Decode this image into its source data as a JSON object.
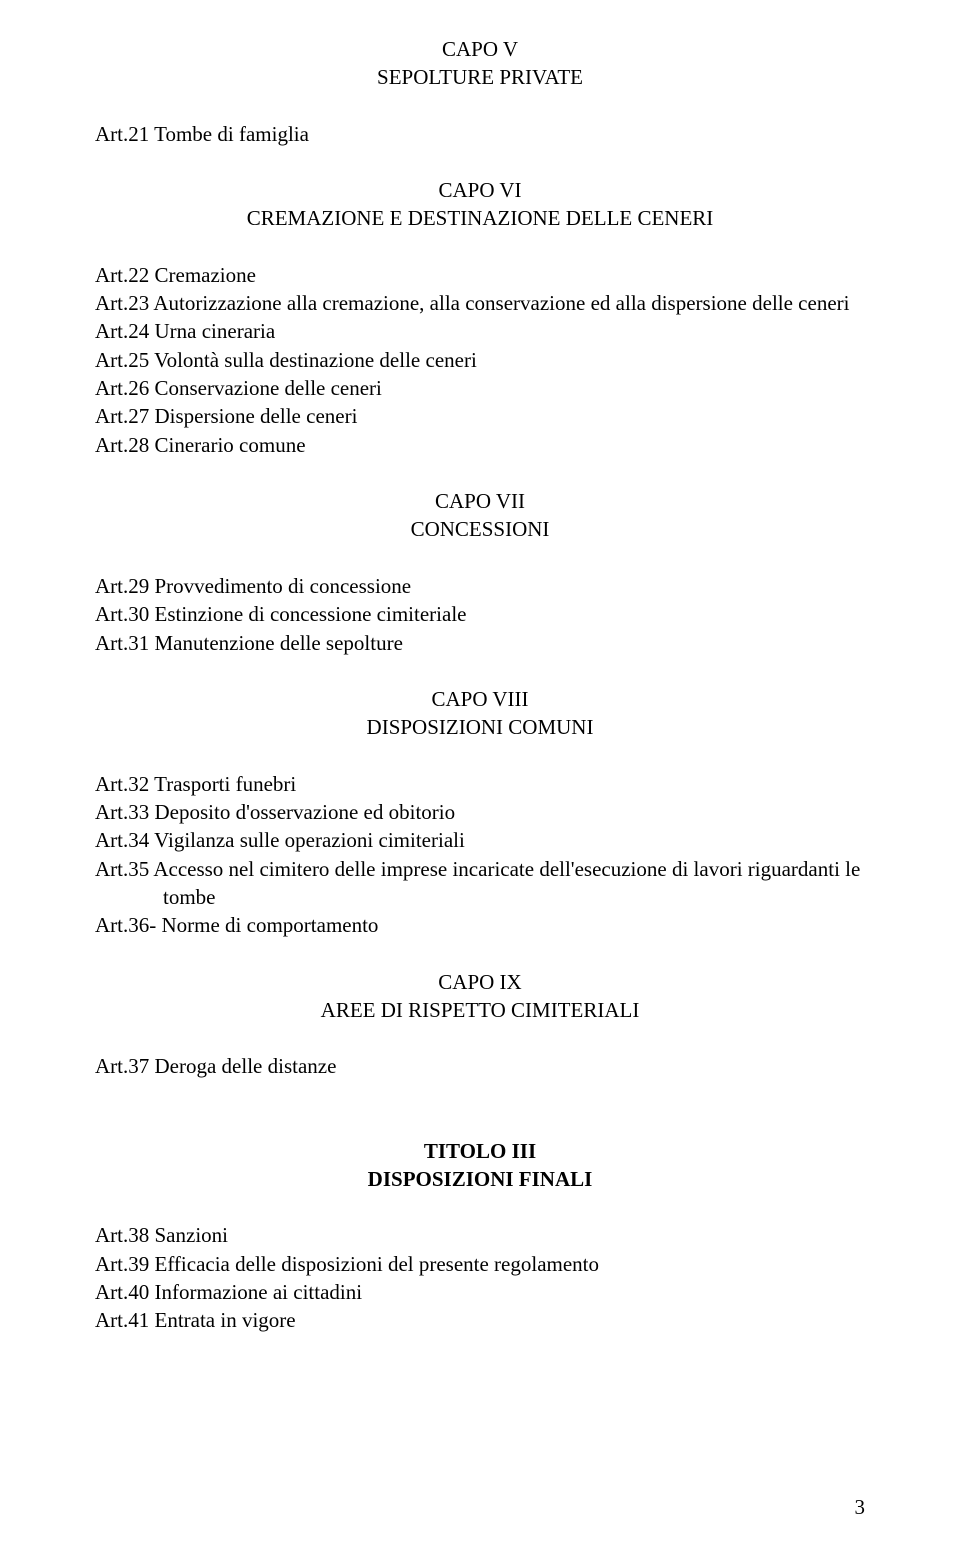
{
  "capoV": {
    "line1": "CAPO V",
    "line2": "SEPOLTURE PRIVATE"
  },
  "listV": {
    "items": [
      "Art.21  Tombe di famiglia"
    ]
  },
  "capoVI": {
    "line1": "CAPO VI",
    "line2": "CREMAZIONE E DESTINAZIONE DELLE CENERI"
  },
  "listVI": {
    "items": [
      "Art.22  Cremazione",
      "Art.23  Autorizzazione alla cremazione, alla conservazione ed alla dispersione delle ceneri",
      "Art.24  Urna cineraria",
      "Art.25  Volontà sulla destinazione delle ceneri",
      "Art.26  Conservazione delle ceneri",
      "Art.27  Dispersione delle ceneri",
      "Art.28  Cinerario comune"
    ]
  },
  "capoVII": {
    "line1": "CAPO VII",
    "line2": "CONCESSIONI"
  },
  "listVII": {
    "items": [
      "Art.29  Provvedimento di concessione",
      "Art.30  Estinzione di concessione cimiteriale",
      "Art.31  Manutenzione delle sepolture"
    ]
  },
  "capoVIII": {
    "line1": "CAPO VIII",
    "line2": "DISPOSIZIONI COMUNI"
  },
  "listVIII": {
    "item1": "Art.32  Trasporti funebri",
    "item2": "Art.33  Deposito d'osservazione ed obitorio",
    "item3": "Art.34  Vigilanza sulle operazioni cimiteriali",
    "item4a": "Art.35 Accesso nel cimitero delle imprese incaricate dell'esecuzione di lavori riguardanti le",
    "item4b": "tombe",
    "item5": "Art.36-  Norme di comportamento"
  },
  "capoIX": {
    "line1": "CAPO IX",
    "line2": "AREE DI RISPETTO CIMITERIALI"
  },
  "listIX": {
    "items": [
      "Art.37  Deroga delle distanze"
    ]
  },
  "titoloIII": {
    "line1": "TITOLO III",
    "line2": "DISPOSIZIONI FINALI"
  },
  "listIII": {
    "items": [
      "Art.38  Sanzioni",
      "Art.39  Efficacia delle disposizioni del presente regolamento",
      "Art.40  Informazione ai cittadini",
      "Art.41  Entrata in vigore"
    ]
  },
  "pageNumber": "3"
}
